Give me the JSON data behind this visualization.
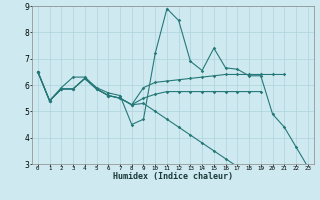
{
  "xlabel": "Humidex (Indice chaleur)",
  "ylabel": "",
  "bg_color": "#ceeaf0",
  "grid_color": "#aed4dc",
  "line_color": "#267878",
  "xlim": [
    -0.5,
    23.5
  ],
  "ylim": [
    3,
    9
  ],
  "xtick_labels": [
    "0",
    "1",
    "2",
    "3",
    "4",
    "5",
    "6",
    "7",
    "8",
    "9",
    "10",
    "11",
    "12",
    "13",
    "14",
    "15",
    "16",
    "17",
    "18",
    "19",
    "20",
    "21",
    "22",
    "23"
  ],
  "yticks": [
    3,
    4,
    5,
    6,
    7,
    8,
    9
  ],
  "series": [
    [
      6.5,
      5.4,
      5.9,
      6.3,
      6.3,
      5.9,
      5.7,
      5.6,
      4.5,
      4.7,
      7.2,
      8.9,
      8.45,
      6.9,
      6.55,
      7.4,
      6.65,
      6.6,
      6.35,
      6.35,
      4.9,
      4.4,
      3.65,
      2.9
    ],
    [
      6.5,
      5.4,
      5.85,
      5.85,
      6.25,
      5.85,
      5.6,
      5.5,
      5.25,
      5.9,
      6.1,
      6.15,
      6.2,
      6.25,
      6.3,
      6.35,
      6.4,
      6.4,
      6.4,
      6.4,
      6.4,
      6.4,
      null,
      null
    ],
    [
      6.5,
      5.4,
      5.85,
      5.85,
      6.25,
      5.85,
      5.6,
      5.5,
      5.25,
      5.3,
      5.0,
      4.7,
      4.4,
      4.1,
      3.8,
      3.5,
      3.2,
      2.9,
      2.9,
      2.9,
      2.9,
      2.9,
      2.9,
      2.9
    ],
    [
      6.5,
      5.4,
      5.85,
      5.85,
      6.25,
      5.85,
      5.6,
      5.5,
      5.25,
      5.5,
      5.65,
      5.75,
      5.75,
      5.75,
      5.75,
      5.75,
      5.75,
      5.75,
      5.75,
      5.75,
      null,
      null,
      null,
      null
    ]
  ]
}
